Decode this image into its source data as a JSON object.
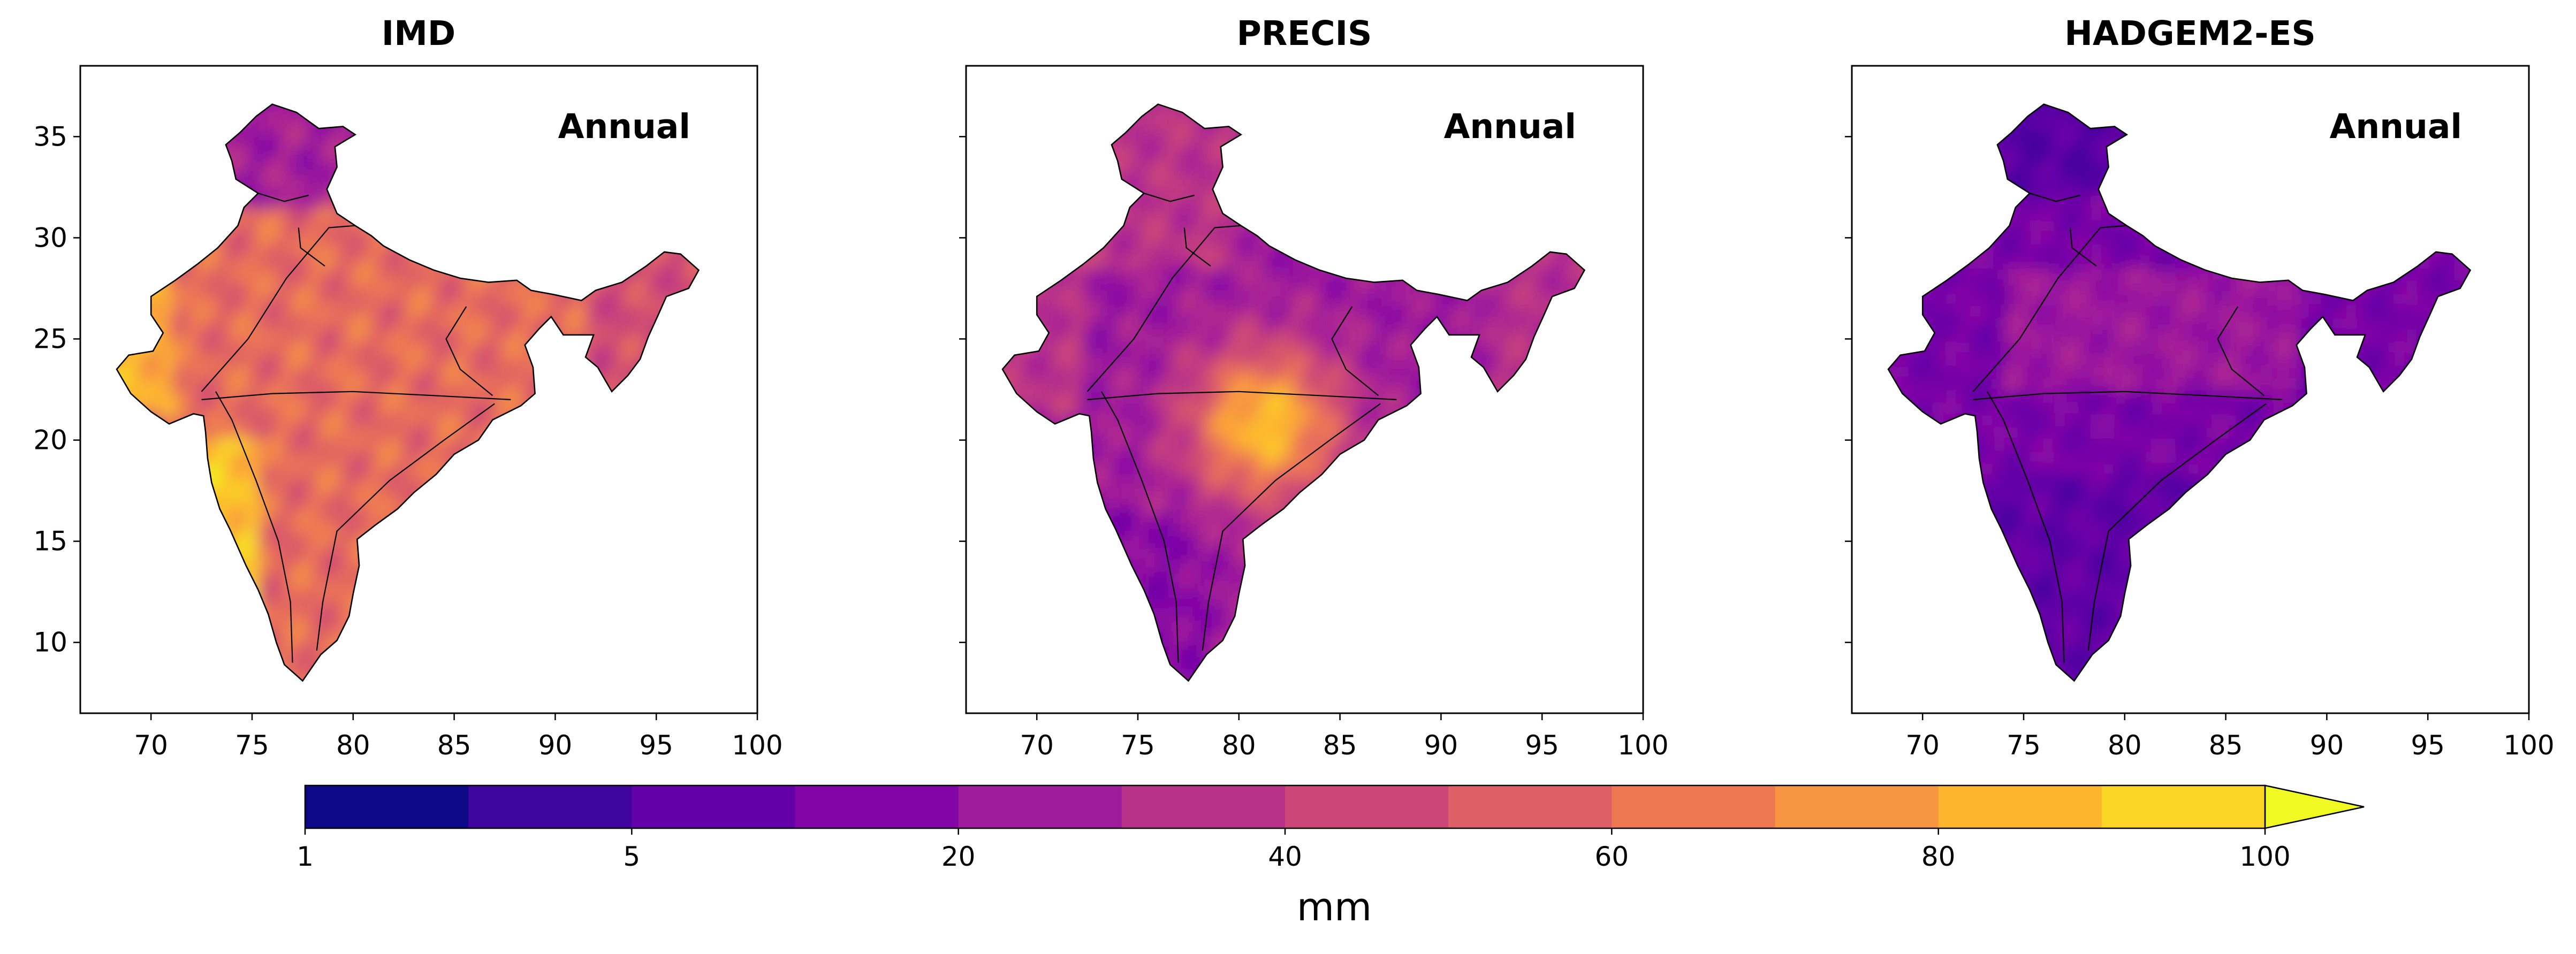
{
  "chart_data": {
    "type": "heatmap",
    "subtype": "filled-contour map (3 panels, shared colorbar)",
    "panels": [
      {
        "title": "IMD",
        "label": "Annual",
        "dominant_range": [
          40,
          100
        ],
        "max_region": "west coast / northeast edges"
      },
      {
        "title": "PRECIS",
        "label": "Annual",
        "dominant_range": [
          10,
          100
        ],
        "max_region": "east-central India"
      },
      {
        "title": "HADGEM2-ES",
        "label": "Annual",
        "dominant_range": [
          5,
          40
        ],
        "max_region": "none pronounced"
      }
    ],
    "x_ticks": [
      70,
      75,
      80,
      85,
      90,
      95,
      100
    ],
    "y_ticks": [
      10,
      15,
      20,
      25,
      30,
      35
    ],
    "xlim": [
      66.5,
      100
    ],
    "ylim": [
      6.5,
      38.5
    ],
    "colorbar": {
      "levels": [
        1,
        3,
        5,
        10,
        20,
        30,
        40,
        50,
        60,
        70,
        80,
        90,
        100
      ],
      "tick_labels": [
        "1",
        "5",
        "20",
        "40",
        "60",
        "80",
        "100"
      ],
      "tick_values": [
        1,
        5,
        20,
        40,
        60,
        80,
        100
      ],
      "extend": "max",
      "label": "mm",
      "colors": [
        "#0d0887",
        "#3f049c",
        "#6300a7",
        "#8405a7",
        "#a01a9c",
        "#b93289",
        "#cc4778",
        "#de5f65",
        "#ed7953",
        "#f89540",
        "#fdb42f",
        "#fbd524",
        "#f0f921"
      ]
    }
  }
}
